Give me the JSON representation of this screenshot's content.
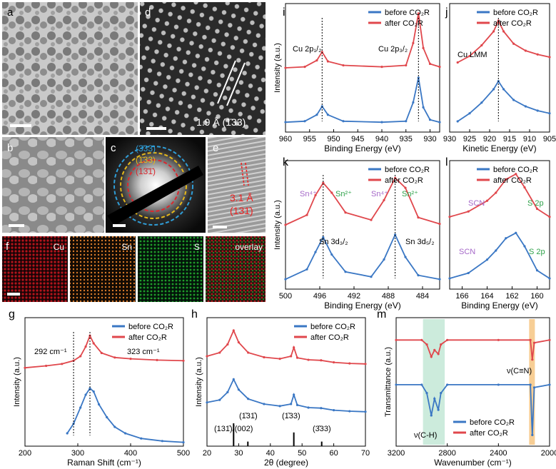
{
  "colors": {
    "before": "#3a77c4",
    "after": "#e0474c",
    "gray": "#555555",
    "green_fill": "#bfe6d3",
    "orange_fill": "#f5c27a"
  },
  "panels": {
    "a": {
      "label": "a"
    },
    "b": {
      "label": "b"
    },
    "c": {
      "label": "c",
      "rings": [
        "(3̄33)",
        "(1̄33)",
        "(13̄1̄)"
      ]
    },
    "d": {
      "label": "d",
      "annotation": "1.9 Å (1̄33)"
    },
    "e": {
      "label": "e",
      "annotation_1": "3.1 Å",
      "annotation_2": "(131̄)"
    },
    "f": {
      "label": "f",
      "maps": [
        "Cu",
        "Sn",
        "S",
        "overlay"
      ],
      "map_colors": [
        "#b3141b",
        "#d87a2a",
        "#1f9c2a",
        "#7a4a22"
      ]
    },
    "g": {
      "label": "g"
    },
    "h": {
      "label": "h"
    },
    "i": {
      "label": "i"
    },
    "j": {
      "label": "j"
    },
    "k": {
      "label": "k"
    },
    "l": {
      "label": "l"
    },
    "m": {
      "label": "m"
    }
  },
  "chart_data": [
    {
      "id": "g",
      "type": "line",
      "xlabel": "Raman Shift (cm⁻¹)",
      "ylabel": "Intensity (a.u.)",
      "xlim": [
        200,
        500
      ],
      "xticks": [
        200,
        300,
        400,
        500
      ],
      "legend": [
        "before CO₂R",
        "after CO₂R"
      ],
      "annotations": [
        "292 cm⁻¹",
        "323 cm⁻¹"
      ],
      "series": [
        {
          "name": "before CO₂R",
          "x": [
            280,
            292,
            305,
            315,
            323,
            330,
            340,
            355,
            370,
            390,
            420,
            460,
            500
          ],
          "y": [
            0.2,
            0.35,
            0.6,
            0.8,
            0.9,
            0.85,
            0.65,
            0.45,
            0.3,
            0.2,
            0.12,
            0.08,
            0.06
          ]
        },
        {
          "name": "after CO₂R",
          "x": [
            200,
            240,
            270,
            292,
            305,
            315,
            323,
            330,
            345,
            370,
            400,
            450,
            500
          ],
          "y": [
            1.22,
            1.25,
            1.28,
            1.33,
            1.4,
            1.55,
            1.72,
            1.6,
            1.45,
            1.38,
            1.36,
            1.34,
            1.33
          ]
        }
      ]
    },
    {
      "id": "h",
      "type": "line",
      "xlabel": "2θ (degree)",
      "ylabel": "Intensity (a.u.)",
      "xlim": [
        20,
        70
      ],
      "xticks": [
        20,
        30,
        40,
        50,
        60,
        70
      ],
      "legend": [
        "before CO₂R",
        "after CO₂R"
      ],
      "reference_labels": [
        "(131̄)/(002)",
        "(1̄31̄)",
        "(1̄33)",
        "(3̄33)"
      ],
      "reference_x": [
        28.4,
        32.9,
        47.4,
        56.2
      ],
      "reference_h": [
        1.0,
        0.2,
        0.6,
        0.2
      ],
      "series": [
        {
          "name": "before CO₂R",
          "x": [
            20,
            24,
            26.5,
            28.4,
            30,
            33,
            38,
            43,
            46.5,
            47.4,
            48.5,
            52,
            56,
            60,
            65,
            70
          ],
          "y": [
            0.55,
            0.6,
            0.75,
            1.0,
            0.8,
            0.62,
            0.52,
            0.48,
            0.52,
            0.7,
            0.5,
            0.45,
            0.44,
            0.4,
            0.38,
            0.37
          ]
        },
        {
          "name": "after CO₂R",
          "x": [
            20,
            24,
            26.5,
            28.4,
            30,
            33,
            38,
            43,
            46.5,
            47.4,
            48.5,
            52,
            56,
            60,
            65,
            70
          ],
          "y": [
            1.45,
            1.52,
            1.68,
            1.95,
            1.72,
            1.52,
            1.43,
            1.4,
            1.45,
            1.62,
            1.42,
            1.38,
            1.37,
            1.33,
            1.31,
            1.3
          ]
        }
      ]
    },
    {
      "id": "i",
      "type": "line",
      "xlabel": "Binding Energy (eV)",
      "ylabel": "Intensity (a.u.)",
      "xlim": [
        960,
        928
      ],
      "xticks": [
        960,
        955,
        950,
        945,
        940,
        935,
        930
      ],
      "legend": [
        "before CO₂R",
        "after CO₂R"
      ],
      "annotations": [
        "Cu 2p₁/₂",
        "Cu 2p₃/₂"
      ],
      "series": [
        {
          "name": "before CO₂R",
          "x": [
            960,
            956,
            953.5,
            952.4,
            951.2,
            948,
            940,
            935,
            933.5,
            932.4,
            931.4,
            930,
            928
          ],
          "y": [
            0.1,
            0.12,
            0.25,
            0.42,
            0.25,
            0.12,
            0.1,
            0.12,
            0.5,
            1.0,
            0.4,
            0.15,
            0.1
          ]
        },
        {
          "name": "after CO₂R",
          "x": [
            960,
            956,
            953.5,
            952.4,
            951.2,
            948,
            940,
            935,
            933.5,
            932.4,
            931.4,
            930,
            928
          ],
          "y": [
            1.2,
            1.22,
            1.35,
            1.52,
            1.33,
            1.25,
            1.22,
            1.25,
            1.7,
            2.3,
            1.6,
            1.28,
            1.22
          ]
        }
      ]
    },
    {
      "id": "j",
      "type": "line",
      "xlabel": "Kinetic Energy (eV)",
      "ylabel": "",
      "xlim": [
        930,
        905
      ],
      "xticks": [
        930,
        925,
        920,
        915,
        910,
        905
      ],
      "legend": [
        "before CO₂R",
        "after CO₂R"
      ],
      "annotations": [
        "Cu LMM"
      ],
      "series": [
        {
          "name": "before CO₂R",
          "x": [
            928,
            925,
            922,
            919,
            917.8,
            916.5,
            914,
            911,
            908,
            905
          ],
          "y": [
            0.1,
            0.25,
            0.45,
            0.7,
            0.85,
            0.7,
            0.5,
            0.38,
            0.3,
            0.25
          ]
        },
        {
          "name": "after CO₂R",
          "x": [
            928,
            925,
            922,
            919,
            917.8,
            916.5,
            914,
            911,
            908,
            905
          ],
          "y": [
            1.2,
            1.32,
            1.52,
            1.78,
            1.98,
            1.78,
            1.55,
            1.42,
            1.35,
            1.3
          ]
        }
      ]
    },
    {
      "id": "k",
      "type": "line",
      "xlabel": "Binding Energy (eV)",
      "ylabel": "Intensity (a.u.)",
      "xlim": [
        500,
        482
      ],
      "xticks": [
        500,
        496,
        492,
        488,
        484
      ],
      "legend": [
        "before CO₂R",
        "after CO₂R"
      ],
      "annotations": [
        "Sn⁴⁺",
        "Sn²⁺",
        "Sn⁴⁺",
        "Sn²⁺",
        "Sn 3d₃/₂",
        "Sn 3d₅/₂"
      ],
      "series": [
        {
          "name": "before CO₂R",
          "x": [
            500,
            497.5,
            496.5,
            495.6,
            494.6,
            493,
            490,
            488.5,
            487.2,
            486,
            484.5,
            482
          ],
          "y": [
            0.1,
            0.3,
            0.65,
            0.95,
            0.6,
            0.25,
            0.15,
            0.5,
            1.0,
            0.55,
            0.18,
            0.1
          ]
        },
        {
          "name": "after CO₂R",
          "x": [
            500,
            497.5,
            496.5,
            495.6,
            494.6,
            493,
            490,
            488.5,
            487.2,
            486,
            484.5,
            482
          ],
          "y": [
            1.2,
            1.4,
            1.8,
            2.05,
            1.85,
            1.45,
            1.3,
            1.7,
            2.15,
            1.95,
            1.35,
            1.22
          ]
        }
      ]
    },
    {
      "id": "l",
      "type": "line",
      "xlabel": "Binding Energy (eV)",
      "ylabel": "",
      "xlim": [
        167,
        159
      ],
      "xticks": [
        166,
        164,
        162,
        160
      ],
      "legend": [
        "before CO₂R",
        "after CO₂R"
      ],
      "annotations": [
        "SCN",
        "S 2p",
        "SCN",
        "S 2p"
      ],
      "series": [
        {
          "name": "before CO₂R",
          "x": [
            167,
            165.5,
            164,
            163.3,
            162.5,
            161.7,
            161,
            160,
            159
          ],
          "y": [
            0.1,
            0.2,
            0.45,
            0.62,
            0.85,
            0.95,
            0.7,
            0.25,
            0.1
          ]
        },
        {
          "name": "after CO₂R",
          "x": [
            167,
            165.5,
            164,
            163.3,
            162.5,
            161.7,
            161,
            160,
            159
          ],
          "y": [
            1.25,
            1.35,
            1.55,
            1.7,
            1.95,
            2.05,
            1.8,
            1.4,
            1.25
          ]
        }
      ]
    },
    {
      "id": "m",
      "type": "line",
      "xlabel": "Wavenumber (cm⁻¹)",
      "ylabel": "Transmittance (a.u.)",
      "xlim": [
        3200,
        2000
      ],
      "xticks": [
        3200,
        2800,
        2400,
        2000
      ],
      "legend": [
        "before CO₂R",
        "after CO₂R"
      ],
      "annotations": [
        "ν(C-H)",
        "ν(C≡N)"
      ],
      "series": [
        {
          "name": "before CO₂R",
          "x": [
            3200,
            3000,
            2960,
            2925,
            2900,
            2870,
            2850,
            2800,
            2400,
            2150,
            2135,
            2120,
            2000
          ],
          "y": [
            1.0,
            1.0,
            0.85,
            0.45,
            0.75,
            0.55,
            0.85,
            1.0,
            1.0,
            1.0,
            0.1,
            0.95,
            1.0
          ]
        },
        {
          "name": "after CO₂R",
          "x": [
            3200,
            3000,
            2960,
            2925,
            2900,
            2870,
            2850,
            2800,
            2400,
            2150,
            2135,
            2120,
            2000
          ],
          "y": [
            1.8,
            1.8,
            1.72,
            1.5,
            1.62,
            1.55,
            1.72,
            1.8,
            1.8,
            1.8,
            1.45,
            1.75,
            1.8
          ]
        }
      ]
    }
  ]
}
